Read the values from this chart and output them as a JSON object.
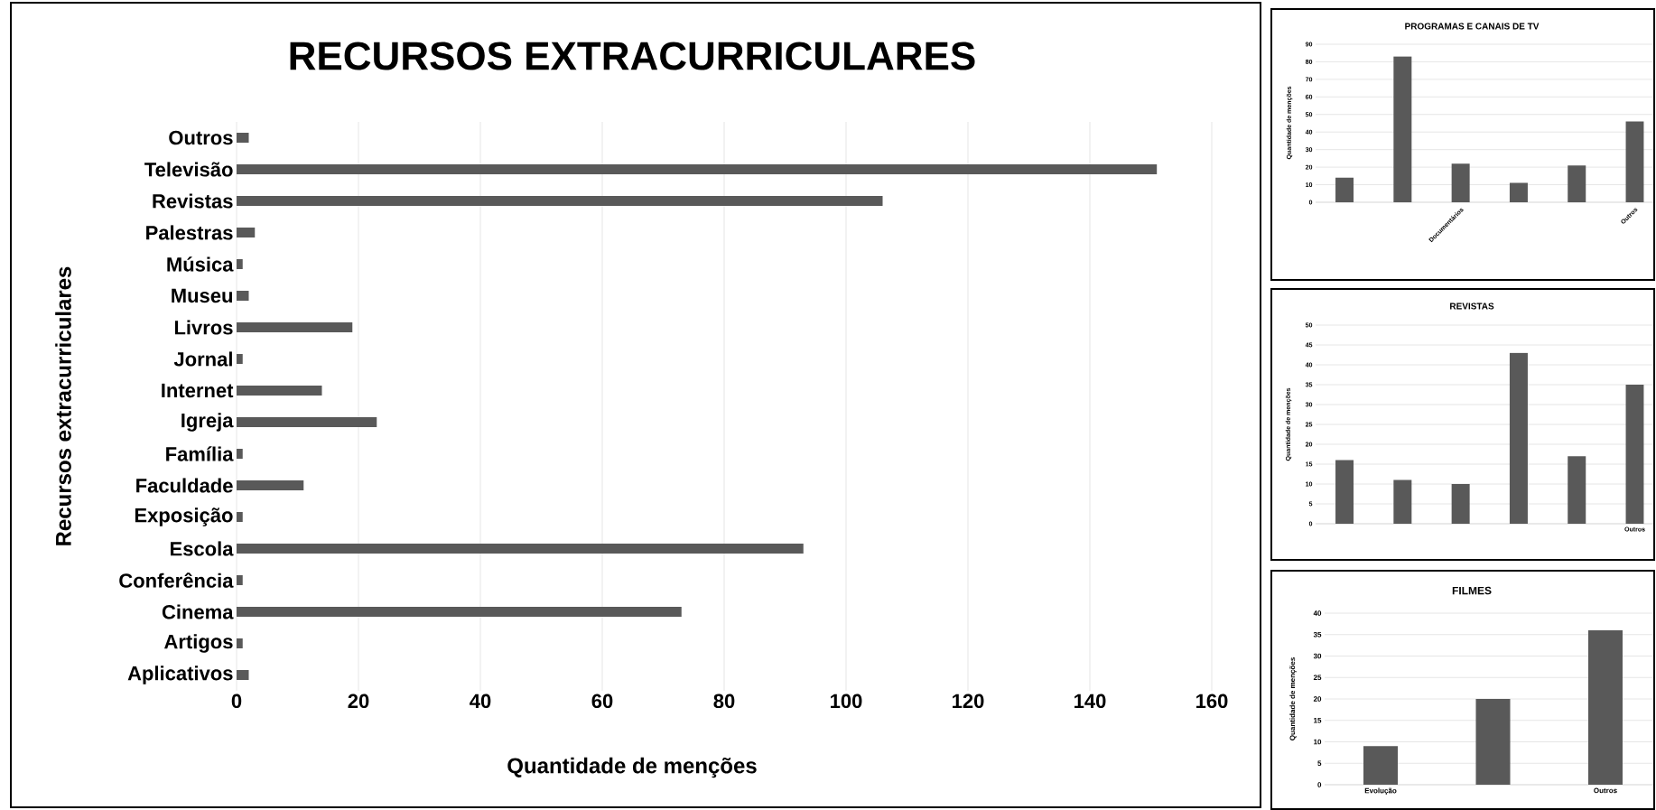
{
  "chart_data": [
    {
      "type": "bar",
      "orientation": "horizontal",
      "title": "RECURSOS EXTRACURRICULARES",
      "xlabel": "Quantidade de menções",
      "ylabel": "Recursos extracurriculares",
      "categories": [
        "Outros",
        "Televisão",
        "Revistas",
        "Palestras",
        "Música",
        "Museu",
        "Livros",
        "Jornal",
        "Internet",
        "Igreja",
        "Família",
        "Faculdade",
        "Exposição",
        "Escola",
        "Conferência",
        "Cinema",
        "Artigos",
        "Aplicativos"
      ],
      "values": [
        2,
        151,
        106,
        3,
        1,
        2,
        19,
        1,
        14,
        23,
        1,
        11,
        1,
        93,
        1,
        73,
        1,
        2
      ],
      "color": "#595959",
      "xlim": [
        0,
        160
      ],
      "xticks": [
        0,
        20,
        40,
        60,
        80,
        100,
        120,
        140,
        160
      ],
      "grid": "x"
    },
    {
      "type": "bar",
      "title": "PROGRAMAS E CANAIS DE TV",
      "ylabel": "Quantidade de menções",
      "categories": [
        null,
        null,
        "Documentários",
        null,
        null,
        "Outros"
      ],
      "values": [
        14,
        83,
        22,
        11,
        21,
        46
      ],
      "color": "#595959",
      "ylim": [
        0,
        90
      ],
      "yticks": [
        0,
        10,
        20,
        30,
        40,
        50,
        60,
        70,
        80,
        90
      ],
      "grid": "y"
    },
    {
      "type": "bar",
      "title": "REVISTAS",
      "ylabel": "Quantidade de menções",
      "categories": [
        null,
        null,
        null,
        null,
        null,
        "Outros"
      ],
      "values": [
        16,
        11,
        10,
        43,
        17,
        35
      ],
      "color": "#595959",
      "ylim": [
        0,
        50
      ],
      "yticks": [
        0,
        5,
        10,
        15,
        20,
        25,
        30,
        35,
        40,
        45,
        50
      ],
      "grid": "y"
    },
    {
      "type": "bar",
      "title": "FILMES",
      "ylabel": "Quantidade de menções",
      "categories": [
        "Evolução",
        null,
        "Outros"
      ],
      "values": [
        9,
        20,
        36
      ],
      "color": "#595959",
      "ylim": [
        0,
        40
      ],
      "yticks": [
        0,
        5,
        10,
        15,
        20,
        25,
        30,
        35,
        40
      ],
      "grid": "y"
    }
  ]
}
